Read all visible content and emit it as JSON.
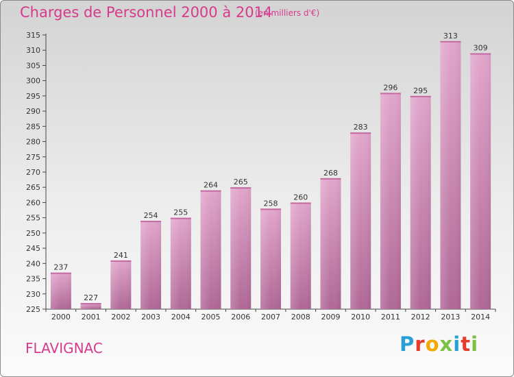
{
  "header": {
    "title": "Charges de Personnel 2000 à 2014",
    "subtitle": "(en milliers d'€)"
  },
  "footer": {
    "town": "FLAVIGNAC",
    "logo": {
      "letters": [
        "P",
        "r",
        "o",
        "x",
        "i",
        "t",
        "i"
      ],
      "colors": [
        "#2a9fd6",
        "#e63c2f",
        "#f2a900",
        "#7ac143",
        "#2a9fd6",
        "#e63c2f",
        "#7ac143"
      ]
    }
  },
  "chart_data": {
    "type": "bar",
    "title": "Charges de Personnel 2000 à 2014",
    "subtitle": "(en milliers d'€)",
    "categories": [
      "2000",
      "2001",
      "2002",
      "2003",
      "2004",
      "2005",
      "2006",
      "2007",
      "2008",
      "2009",
      "2010",
      "2011",
      "2012",
      "2013",
      "2014"
    ],
    "values": [
      237,
      227,
      241,
      254,
      255,
      264,
      265,
      258,
      260,
      268,
      283,
      296,
      295,
      313,
      309
    ],
    "ylim": [
      225,
      315
    ],
    "ytick_step": 5,
    "grid": false,
    "bar_color": "#d480b4",
    "data_labels": true
  }
}
